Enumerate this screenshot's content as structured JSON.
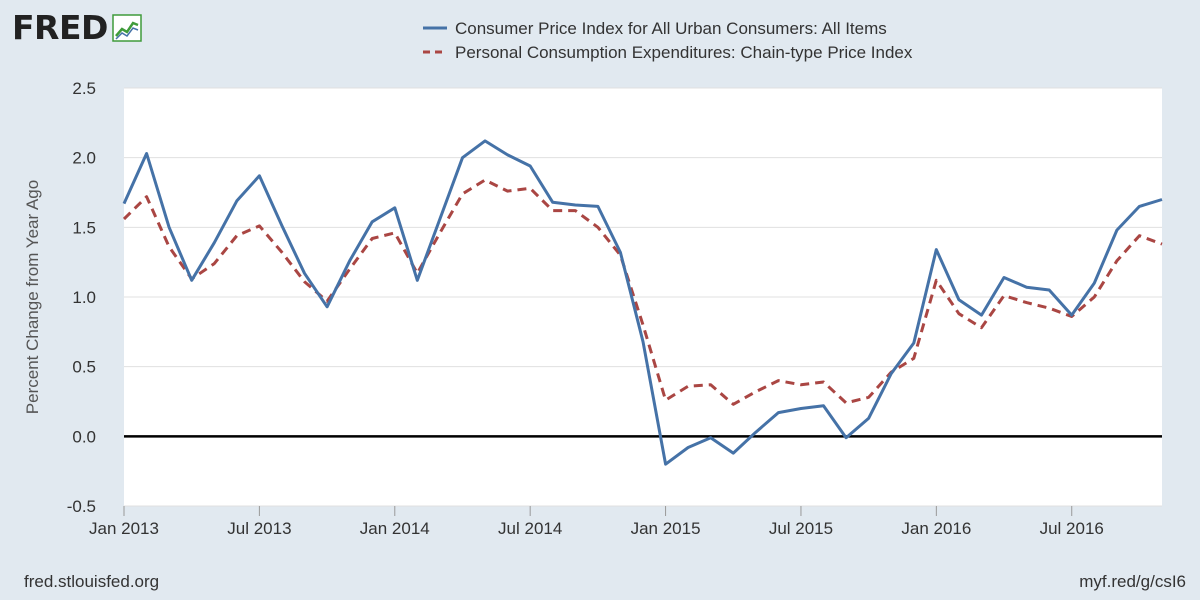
{
  "header": {
    "logo_text": "FRED"
  },
  "footer": {
    "source": "fred.stlouisfed.org",
    "short_link": "myf.red/g/csI6"
  },
  "colors": {
    "cpi": "#4572a7",
    "pce": "#aa4643",
    "zero_line": "#000000",
    "grid": "#e0e0e0",
    "logo_green": "#3f9b3a"
  },
  "chart_data": {
    "type": "line",
    "title": "",
    "ylabel": "Percent Change from Year Ago",
    "xlabel": "",
    "ylim": [
      -0.5,
      2.5
    ],
    "yticks": [
      -0.5,
      0.0,
      0.5,
      1.0,
      1.5,
      2.0,
      2.5
    ],
    "ytick_labels": [
      "-0.5",
      "0.0",
      "0.5",
      "1.0",
      "1.5",
      "2.0",
      "2.5"
    ],
    "x_start": "Jan 2013",
    "x_end": "Oct 2016",
    "xticks": [
      {
        "label": "Jan 2013",
        "month_index": 0
      },
      {
        "label": "Jul 2013",
        "month_index": 6
      },
      {
        "label": "Jan 2014",
        "month_index": 12
      },
      {
        "label": "Jul 2014",
        "month_index": 18
      },
      {
        "label": "Jan 2015",
        "month_index": 24
      },
      {
        "label": "Jul 2015",
        "month_index": 30
      },
      {
        "label": "Jan 2016",
        "month_index": 36
      },
      {
        "label": "Jul 2016",
        "month_index": 42
      }
    ],
    "legend_position": "top-center",
    "series": [
      {
        "name": "Consumer Price Index for All Urban Consumers: All Items",
        "style": "solid",
        "values": [
          1.67,
          2.03,
          1.5,
          1.12,
          1.39,
          1.69,
          1.87,
          1.51,
          1.17,
          0.93,
          1.26,
          1.54,
          1.64,
          1.12,
          1.56,
          2.0,
          2.12,
          2.02,
          1.94,
          1.68,
          1.66,
          1.65,
          1.32,
          0.68,
          -0.2,
          -0.08,
          -0.01,
          -0.12,
          0.03,
          0.17,
          0.2,
          0.22,
          -0.01,
          0.13,
          0.45,
          0.67,
          1.34,
          0.98,
          0.87,
          1.14,
          1.07,
          1.05,
          0.87,
          1.1,
          1.48,
          1.65,
          1.7
        ]
      },
      {
        "name": "Personal Consumption Expenditures: Chain-type Price Index",
        "style": "dashed",
        "values": [
          1.56,
          1.72,
          1.36,
          1.13,
          1.24,
          1.44,
          1.51,
          1.32,
          1.11,
          0.97,
          1.2,
          1.42,
          1.46,
          1.17,
          1.46,
          1.74,
          1.84,
          1.76,
          1.78,
          1.62,
          1.62,
          1.5,
          1.3,
          0.8,
          0.26,
          0.36,
          0.37,
          0.23,
          0.32,
          0.4,
          0.37,
          0.39,
          0.24,
          0.28,
          0.46,
          0.56,
          1.12,
          0.88,
          0.78,
          1.01,
          0.96,
          0.92,
          0.86,
          1.0,
          1.26,
          1.44,
          1.38
        ]
      }
    ]
  }
}
